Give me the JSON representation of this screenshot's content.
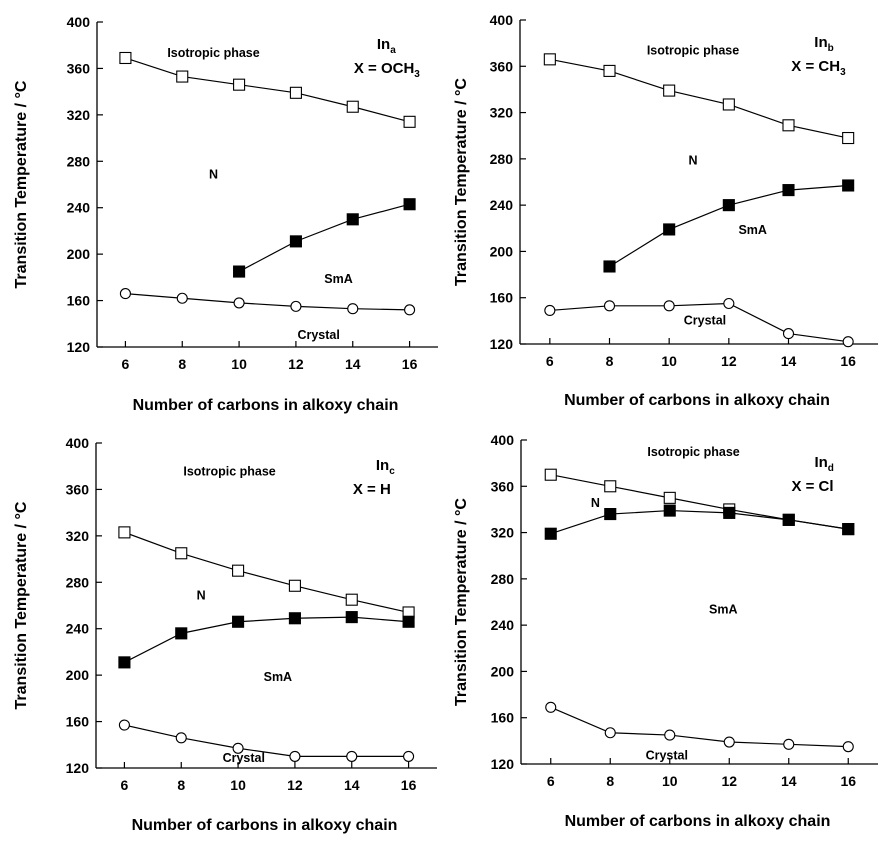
{
  "chart_data": [
    {
      "type": "line",
      "xlabel": "Number of carbons in alkoxy chain",
      "ylabel": "Transition Temperature / °C",
      "xlim": [
        5,
        17
      ],
      "ylim": [
        120,
        400
      ],
      "xticks": [
        6,
        8,
        10,
        12,
        14,
        16
      ],
      "yticks": [
        120,
        160,
        200,
        240,
        280,
        320,
        360,
        400
      ],
      "compound": {
        "base": "In",
        "sub": "a",
        "formula": "X = OCH",
        "formula_sub": "3"
      },
      "annotations": [
        {
          "text": "Isotropic phase",
          "x": 9.1,
          "y": 370
        },
        {
          "text": "N",
          "x": 9.1,
          "y": 265
        },
        {
          "text": "SmA",
          "x": 13.5,
          "y": 175
        },
        {
          "text": "Crystal",
          "x": 12.8,
          "y": 127
        }
      ],
      "series": [
        {
          "marker": "open-square",
          "x": [
            6,
            8,
            10,
            12,
            14,
            16
          ],
          "values": [
            369,
            353,
            346,
            339,
            327,
            314
          ]
        },
        {
          "marker": "filled-square",
          "x": [
            10,
            12,
            14,
            16
          ],
          "values": [
            185,
            211,
            230,
            243
          ]
        },
        {
          "marker": "open-circle",
          "x": [
            6,
            8,
            10,
            12,
            14,
            16
          ],
          "values": [
            166,
            162,
            158,
            155,
            153,
            152
          ]
        }
      ]
    },
    {
      "type": "line",
      "xlabel": "Number of carbons in alkoxy chain",
      "ylabel": "Transition Temperature / °C",
      "xlim": [
        5,
        17
      ],
      "ylim": [
        120,
        400
      ],
      "xticks": [
        6,
        8,
        10,
        12,
        14,
        16
      ],
      "yticks": [
        120,
        160,
        200,
        240,
        280,
        320,
        360,
        400
      ],
      "compound": {
        "base": "In",
        "sub": "b",
        "formula": "X = CH",
        "formula_sub": "3"
      },
      "annotations": [
        {
          "text": "Isotropic phase",
          "x": 10.8,
          "y": 370
        },
        {
          "text": "N",
          "x": 10.8,
          "y": 275
        },
        {
          "text": "SmA",
          "x": 12.8,
          "y": 215
        },
        {
          "text": "Crystal",
          "x": 11.2,
          "y": 137
        }
      ],
      "series": [
        {
          "marker": "open-square",
          "x": [
            6,
            8,
            10,
            12,
            14,
            16
          ],
          "values": [
            366,
            356,
            339,
            327,
            309,
            298
          ]
        },
        {
          "marker": "filled-square",
          "x": [
            8,
            10,
            12,
            14,
            16
          ],
          "values": [
            187,
            219,
            240,
            253,
            257
          ]
        },
        {
          "marker": "open-circle",
          "x": [
            6,
            8,
            10,
            12,
            14,
            16
          ],
          "values": [
            149,
            153,
            153,
            155,
            129,
            122
          ]
        }
      ]
    },
    {
      "type": "line",
      "xlabel": "Number of carbons in alkoxy chain",
      "ylabel": "Transition Temperature / °C",
      "xlim": [
        5,
        17
      ],
      "ylim": [
        120,
        400
      ],
      "xticks": [
        6,
        8,
        10,
        12,
        14,
        16
      ],
      "yticks": [
        120,
        160,
        200,
        240,
        280,
        320,
        360,
        400
      ],
      "compound": {
        "base": "In",
        "sub": "c",
        "formula": "X = H",
        "formula_sub": ""
      },
      "annotations": [
        {
          "text": "Isotropic phase",
          "x": 9.7,
          "y": 372
        },
        {
          "text": "N",
          "x": 8.7,
          "y": 265
        },
        {
          "text": "SmA",
          "x": 11.4,
          "y": 195
        },
        {
          "text": "Crystal",
          "x": 10.2,
          "y": 125
        }
      ],
      "series": [
        {
          "marker": "open-square",
          "x": [
            6,
            8,
            10,
            12,
            14,
            16
          ],
          "values": [
            323,
            305,
            290,
            277,
            265,
            254
          ]
        },
        {
          "marker": "filled-square",
          "x": [
            6,
            8,
            10,
            12,
            14,
            16
          ],
          "values": [
            211,
            236,
            246,
            249,
            250,
            246
          ]
        },
        {
          "marker": "open-circle",
          "x": [
            6,
            8,
            10,
            12,
            14,
            16
          ],
          "values": [
            157,
            146,
            137,
            130,
            130,
            130
          ]
        }
      ]
    },
    {
      "type": "line",
      "xlabel": "Number of carbons in alkoxy chain",
      "ylabel": "Transition Temperature / °C",
      "xlim": [
        5,
        17
      ],
      "ylim": [
        120,
        400
      ],
      "xticks": [
        6,
        8,
        10,
        12,
        14,
        16
      ],
      "yticks": [
        120,
        160,
        200,
        240,
        280,
        320,
        360,
        400
      ],
      "compound": {
        "base": "In",
        "sub": "d",
        "formula": "X = Cl",
        "formula_sub": ""
      },
      "annotations": [
        {
          "text": "Isotropic phase",
          "x": 10.8,
          "y": 386
        },
        {
          "text": "N",
          "x": 7.5,
          "y": 342
        },
        {
          "text": "SmA",
          "x": 11.8,
          "y": 250
        },
        {
          "text": "Crystal",
          "x": 9.9,
          "y": 124
        }
      ],
      "series": [
        {
          "marker": "open-square",
          "x": [
            6,
            8,
            10,
            12,
            14,
            16
          ],
          "values": [
            370,
            360,
            350,
            340,
            331,
            323
          ]
        },
        {
          "marker": "filled-square",
          "x": [
            6,
            8,
            10,
            12,
            14,
            16
          ],
          "values": [
            319,
            336,
            339,
            337,
            331,
            323
          ]
        },
        {
          "marker": "open-circle",
          "x": [
            6,
            8,
            10,
            12,
            14,
            16
          ],
          "values": [
            169,
            147,
            145,
            139,
            137,
            135
          ]
        }
      ]
    }
  ]
}
